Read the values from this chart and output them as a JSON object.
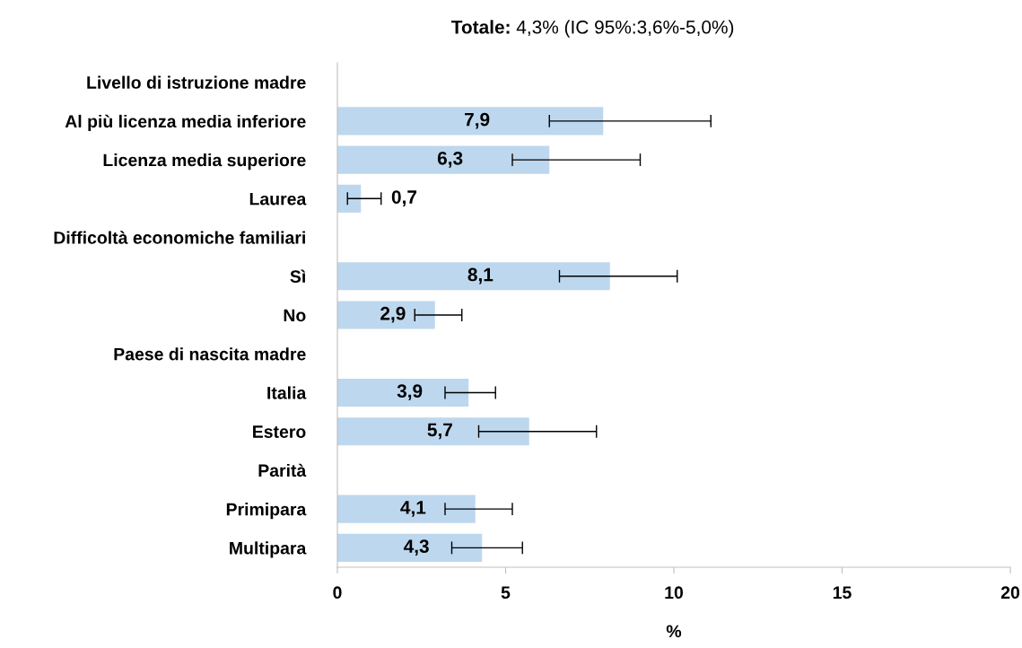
{
  "chart_data": {
    "type": "bar",
    "orientation": "horizontal",
    "title": "Totale: 4,3% (IC 95%:3,6%-5,0%)",
    "xlabel": "%",
    "categories": [
      "Livello di istruzione madre",
      "Al più licenza media inferiore",
      "Licenza media superiore",
      "Laurea",
      "Difficoltà economiche familiari",
      "Sì",
      "No",
      "Paese di nascita madre",
      "Italia",
      "Estero",
      "Parità",
      "Primipara",
      "Multipara"
    ],
    "values": [
      null,
      7.9,
      6.3,
      0.7,
      null,
      8.1,
      2.9,
      null,
      3.9,
      5.7,
      null,
      4.1,
      4.3
    ],
    "errors": [
      null,
      [
        6.3,
        11.1
      ],
      [
        5.2,
        9.0
      ],
      [
        0.3,
        1.3
      ],
      null,
      [
        6.6,
        10.1
      ],
      [
        2.3,
        3.7
      ],
      null,
      [
        3.2,
        4.7
      ],
      [
        4.2,
        7.7
      ],
      null,
      [
        3.2,
        5.2
      ],
      [
        3.4,
        5.5
      ]
    ],
    "value_labels": [
      null,
      "7,9",
      "6,3",
      "0,7",
      null,
      "8,1",
      "2,9",
      null,
      "3,9",
      "5,7",
      null,
      "4,1",
      "4,3"
    ],
    "color": "#bdd7ee",
    "xlim": [
      0,
      20
    ],
    "xticks": [
      0,
      5,
      10,
      15,
      20
    ],
    "grid": false,
    "legend": false
  }
}
